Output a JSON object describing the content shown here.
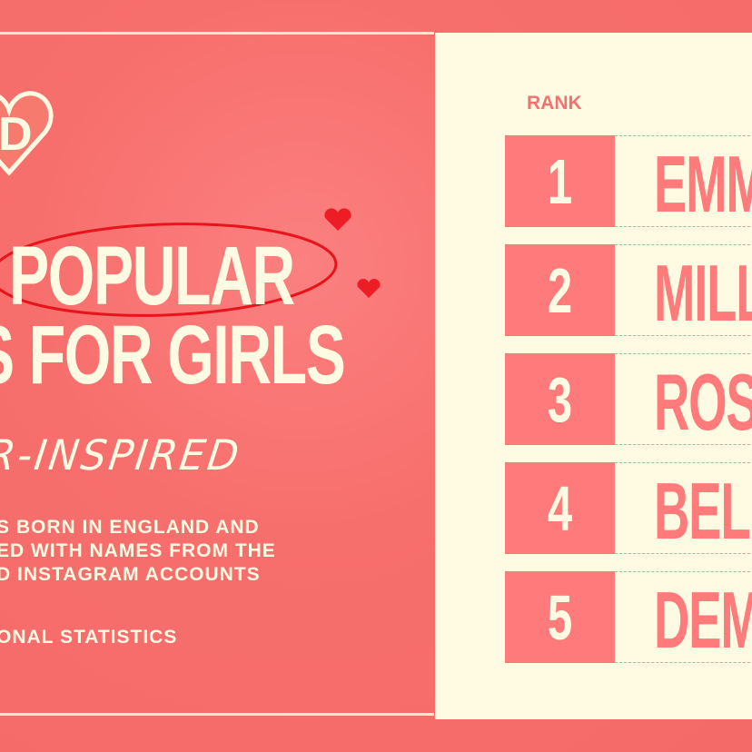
{
  "left": {
    "title_line1": "POPULAR",
    "title_line2": "S FOR GIRLS",
    "subtitle": "R-INSPIRED",
    "description": [
      "S BORN IN ENGLAND AND",
      "ED WITH NAMES FROM THE",
      "D INSTAGRAM ACCOUNTS"
    ],
    "source": "ONAL STATISTICS",
    "logo_letter": "D"
  },
  "right": {
    "rank_header": "RANK",
    "rows": [
      {
        "rank": "1",
        "name": "EMM"
      },
      {
        "rank": "2",
        "name": "MILL"
      },
      {
        "rank": "3",
        "name": "ROS"
      },
      {
        "rank": "4",
        "name": "BELL"
      },
      {
        "rank": "5",
        "name": "DEM"
      }
    ]
  },
  "colors": {
    "background": "#f76f6d",
    "panel": "#fffbe3",
    "rank_box": "#ff7b7b",
    "heart": "#ee1c25"
  }
}
